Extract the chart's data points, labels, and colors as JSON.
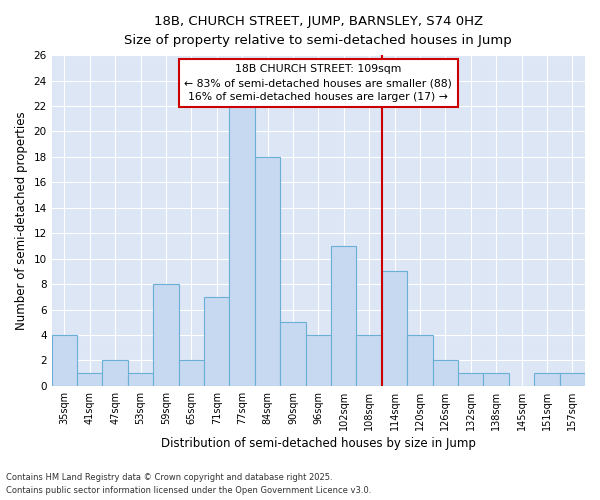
{
  "title_line1": "18B, CHURCH STREET, JUMP, BARNSLEY, S74 0HZ",
  "title_line2": "Size of property relative to semi-detached houses in Jump",
  "xlabel": "Distribution of semi-detached houses by size in Jump",
  "ylabel": "Number of semi-detached properties",
  "categories": [
    "35sqm",
    "41sqm",
    "47sqm",
    "53sqm",
    "59sqm",
    "65sqm",
    "71sqm",
    "77sqm",
    "84sqm",
    "90sqm",
    "96sqm",
    "102sqm",
    "108sqm",
    "114sqm",
    "120sqm",
    "126sqm",
    "132sqm",
    "138sqm",
    "145sqm",
    "151sqm",
    "157sqm"
  ],
  "values": [
    4,
    1,
    2,
    1,
    8,
    2,
    7,
    22,
    18,
    5,
    4,
    11,
    4,
    9,
    4,
    2,
    1,
    1,
    0,
    1,
    1
  ],
  "bar_color": "#c6d9f1",
  "bar_edge_color": "#6baed6",
  "vline_color": "#cc0000",
  "annotation_title": "18B CHURCH STREET: 109sqm",
  "annotation_line1": "← 83% of semi-detached houses are smaller (88)",
  "annotation_line2": "16% of semi-detached houses are larger (17) →",
  "ylim": [
    0,
    26
  ],
  "yticks": [
    0,
    2,
    4,
    6,
    8,
    10,
    12,
    14,
    16,
    18,
    20,
    22,
    24,
    26
  ],
  "background_color": "#dce6f5",
  "grid_color": "#ffffff",
  "footnote1": "Contains HM Land Registry data © Crown copyright and database right 2025.",
  "footnote2": "Contains public sector information licensed under the Open Government Licence v3.0."
}
